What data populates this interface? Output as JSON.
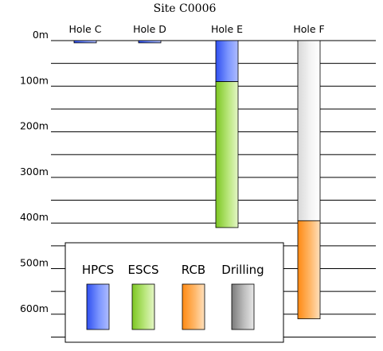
{
  "title": "Site C0006",
  "depth_labels": [
    "0m",
    "100m",
    "200m",
    "300m",
    "400m",
    "500m",
    "600m"
  ],
  "holes": [
    {
      "name": "Hole C",
      "intervals": [
        {
          "method": "HPCS",
          "from_m": 0,
          "to_m": 5
        }
      ]
    },
    {
      "name": "Hole D",
      "intervals": [
        {
          "method": "HPCS",
          "from_m": 0,
          "to_m": 5
        }
      ]
    },
    {
      "name": "Hole E",
      "intervals": [
        {
          "method": "HPCS",
          "from_m": 0,
          "to_m": 90
        },
        {
          "method": "ESCS",
          "from_m": 90,
          "to_m": 410
        }
      ]
    },
    {
      "name": "Hole F",
      "intervals": [
        {
          "method": "Drilling",
          "from_m": 0,
          "to_m": 395
        },
        {
          "method": "RCB",
          "from_m": 395,
          "to_m": 610
        }
      ]
    }
  ],
  "legend": [
    {
      "label": "HPCS",
      "color": "#3a5df5"
    },
    {
      "label": "ESCS",
      "color": "#8fd23a"
    },
    {
      "label": "RCB",
      "color": "#ff9326"
    },
    {
      "label": "Drilling",
      "color": "#8a8a8a"
    }
  ]
}
